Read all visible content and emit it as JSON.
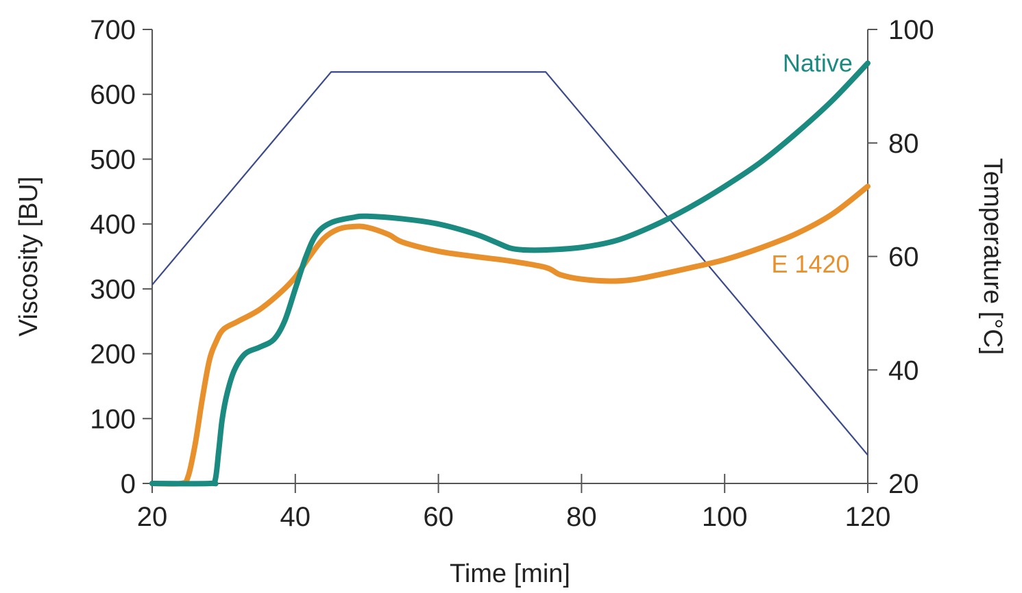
{
  "chart_data": {
    "type": "line",
    "xlabel": "Time [min]",
    "ylabel": "Viscosity [BU]",
    "y2label": "Temperature [°C]",
    "xlim": [
      20,
      120
    ],
    "ylim": [
      0,
      700
    ],
    "y2lim": [
      20,
      100
    ],
    "x_ticks": [
      20,
      40,
      60,
      80,
      100,
      120
    ],
    "y_ticks": [
      0,
      100,
      200,
      300,
      400,
      500,
      600,
      700
    ],
    "y2_ticks": [
      20,
      40,
      60,
      80,
      100
    ],
    "grid": false,
    "colors": {
      "native": "#1b8a80",
      "e1420": "#e8902c",
      "temperature": "#3a4a8c",
      "axis": "#555555"
    },
    "series": [
      {
        "name": "Native",
        "axis": "left",
        "points": [
          [
            20,
            0
          ],
          [
            28,
            0
          ],
          [
            28.8,
            5
          ],
          [
            29.3,
            50
          ],
          [
            29.8,
            100
          ],
          [
            30.5,
            140
          ],
          [
            31.5,
            175
          ],
          [
            33,
            200
          ],
          [
            35,
            210
          ],
          [
            37,
            222
          ],
          [
            38.5,
            250
          ],
          [
            40,
            300
          ],
          [
            41.5,
            350
          ],
          [
            43,
            385
          ],
          [
            45,
            402
          ],
          [
            48,
            410
          ],
          [
            50,
            412
          ],
          [
            55,
            408
          ],
          [
            60,
            400
          ],
          [
            65,
            385
          ],
          [
            68,
            372
          ],
          [
            70,
            363
          ],
          [
            72,
            360
          ],
          [
            75,
            360
          ],
          [
            80,
            364
          ],
          [
            85,
            375
          ],
          [
            90,
            397
          ],
          [
            95,
            425
          ],
          [
            100,
            458
          ],
          [
            105,
            495
          ],
          [
            110,
            540
          ],
          [
            115,
            590
          ],
          [
            120,
            648
          ]
        ]
      },
      {
        "name": "E 1420",
        "axis": "left",
        "points": [
          [
            20,
            0
          ],
          [
            24,
            0
          ],
          [
            25,
            10
          ],
          [
            26,
            60
          ],
          [
            27,
            130
          ],
          [
            28,
            190
          ],
          [
            29,
            220
          ],
          [
            30,
            238
          ],
          [
            32,
            250
          ],
          [
            35,
            268
          ],
          [
            38,
            295
          ],
          [
            40,
            318
          ],
          [
            42,
            350
          ],
          [
            44,
            378
          ],
          [
            46,
            392
          ],
          [
            48,
            396
          ],
          [
            50,
            395
          ],
          [
            53,
            384
          ],
          [
            55,
            372
          ],
          [
            60,
            358
          ],
          [
            65,
            350
          ],
          [
            70,
            343
          ],
          [
            75,
            333
          ],
          [
            77,
            322
          ],
          [
            80,
            315
          ],
          [
            84,
            312
          ],
          [
            87,
            314
          ],
          [
            90,
            320
          ],
          [
            95,
            332
          ],
          [
            100,
            345
          ],
          [
            105,
            363
          ],
          [
            110,
            385
          ],
          [
            115,
            415
          ],
          [
            120,
            458
          ]
        ]
      },
      {
        "name": "",
        "axis": "right",
        "points": [
          [
            20,
            55
          ],
          [
            45,
            92.5
          ],
          [
            75,
            92.5
          ],
          [
            120,
            25
          ]
        ]
      }
    ],
    "annotations": [
      {
        "text": "Native",
        "x": 113,
        "y": 635,
        "series": "Native"
      },
      {
        "text": "E 1420",
        "x": 112,
        "y": 325,
        "series": "E 1420"
      }
    ]
  }
}
